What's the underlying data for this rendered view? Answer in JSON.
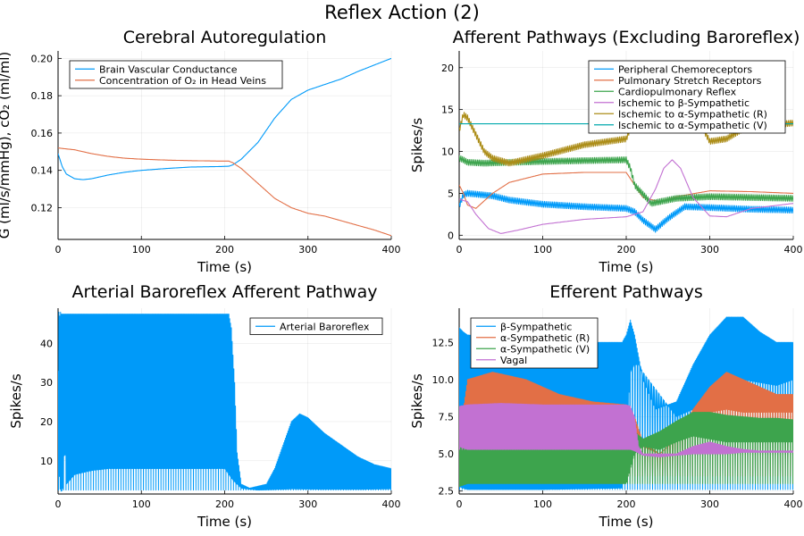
{
  "figure_title": "Reflex Action (2)",
  "chart_data": [
    {
      "type": "line",
      "title": "Cerebral Autoregulation",
      "xlabel": "Time (s)",
      "ylabel": "G (ml/s/mmHg), cO₂ (ml/ml)",
      "xlim": [
        0,
        400
      ],
      "ylim": [
        0.103,
        0.204
      ],
      "xticks": [
        "0",
        "100",
        "200",
        "300",
        "400"
      ],
      "yticks": [
        "0.12",
        "0.14",
        "0.16",
        "0.18",
        "0.20"
      ],
      "legend_position": "top-left",
      "grid": true,
      "series": [
        {
          "name": "Brain Vascular Conductance",
          "color": "#009af9",
          "x": [
            0,
            5,
            10,
            20,
            30,
            40,
            60,
            80,
            100,
            130,
            160,
            190,
            205,
            210,
            220,
            240,
            260,
            280,
            300,
            320,
            340,
            360,
            380,
            400
          ],
          "y": [
            0.149,
            0.142,
            0.138,
            0.1355,
            0.135,
            0.1355,
            0.1375,
            0.139,
            0.14,
            0.141,
            0.1418,
            0.142,
            0.1422,
            0.143,
            0.146,
            0.155,
            0.168,
            0.178,
            0.183,
            0.186,
            0.189,
            0.193,
            0.1965,
            0.2
          ]
        },
        {
          "name": "Concentration of O₂ in Head Veins",
          "color": "#e26f46",
          "x": [
            0,
            20,
            40,
            60,
            80,
            100,
            130,
            160,
            190,
            205,
            210,
            220,
            240,
            260,
            280,
            300,
            320,
            340,
            360,
            380,
            400
          ],
          "y": [
            0.152,
            0.151,
            0.149,
            0.1475,
            0.1465,
            0.146,
            0.1455,
            0.1452,
            0.145,
            0.145,
            0.144,
            0.141,
            0.133,
            0.125,
            0.12,
            0.117,
            0.1155,
            0.113,
            0.1105,
            0.108,
            0.105
          ]
        }
      ]
    },
    {
      "type": "line",
      "title": "Afferent Pathways (Excluding Baroreflex)",
      "xlabel": "Time (s)",
      "ylabel": "Spikes/s",
      "xlim": [
        0,
        400
      ],
      "ylim": [
        -0.5,
        22
      ],
      "xticks": [
        "0",
        "100",
        "200",
        "300",
        "400"
      ],
      "yticks": [
        "0",
        "5",
        "10",
        "15",
        "20"
      ],
      "legend_position": "top-right",
      "grid": true,
      "series": [
        {
          "name": "Peripheral Chemoreceptors",
          "color": "#009af9",
          "x": [
            0,
            5,
            10,
            20,
            40,
            60,
            100,
            150,
            200,
            210,
            220,
            235,
            250,
            270,
            300,
            350,
            400
          ],
          "y": [
            3.5,
            4.8,
            5.0,
            4.9,
            4.7,
            4.2,
            3.7,
            3.4,
            3.2,
            2.8,
            1.8,
            0.7,
            2.0,
            3.4,
            3.3,
            3.1,
            3.0
          ],
          "wiggle": 0.35
        },
        {
          "name": "Pulmonary Stretch Receptors",
          "color": "#e26f46",
          "x": [
            0,
            5,
            10,
            20,
            40,
            60,
            100,
            150,
            200,
            210,
            220,
            240,
            260,
            300,
            350,
            400
          ],
          "y": [
            6.0,
            5.0,
            3.6,
            3.2,
            5.0,
            6.3,
            7.3,
            7.5,
            7.5,
            6.0,
            4.5,
            4.0,
            4.6,
            5.3,
            5.2,
            5.0
          ]
        },
        {
          "name": "Cardiopulmonary Reflex",
          "color": "#3da44d",
          "x": [
            0,
            5,
            10,
            30,
            60,
            100,
            150,
            200,
            205,
            210,
            230,
            260,
            300,
            350,
            400
          ],
          "y": [
            9.2,
            9.0,
            8.7,
            8.6,
            8.7,
            8.8,
            8.9,
            9.0,
            8.0,
            6.0,
            3.8,
            4.4,
            4.6,
            4.5,
            4.4
          ],
          "wiggle": 0.35
        },
        {
          "name": "Ischemic to β-Sympathetic",
          "color": "#c271d2",
          "x": [
            0,
            10,
            20,
            35,
            50,
            70,
            100,
            150,
            200,
            220,
            235,
            245,
            255,
            265,
            280,
            300,
            320,
            350,
            400
          ],
          "y": [
            4.3,
            4.0,
            2.5,
            0.8,
            0.2,
            0.6,
            1.3,
            1.9,
            2.2,
            2.8,
            5.5,
            8.0,
            9.0,
            8.0,
            4.5,
            2.3,
            2.2,
            3.2,
            3.8
          ]
        },
        {
          "name": "Ischemic to α-Sympathetic (R)",
          "color": "#ac8d18",
          "x": [
            0,
            5,
            10,
            20,
            30,
            40,
            60,
            100,
            150,
            200,
            205,
            210,
            220,
            240,
            260,
            280,
            300,
            320,
            340,
            360,
            380,
            400
          ],
          "y": [
            12.5,
            14.4,
            14.0,
            12.0,
            10.0,
            9.2,
            8.6,
            9.5,
            10.8,
            11.5,
            12.8,
            14.5,
            17.0,
            20.2,
            19.5,
            15.0,
            11.2,
            11.5,
            12.7,
            13.3,
            13.2,
            13.4
          ],
          "wiggle": 0.35
        },
        {
          "name": "Ischemic to α-Sympathetic (V)",
          "color": "#00a9ad",
          "x": [
            0,
            5,
            400
          ],
          "y": [
            13.3,
            13.3,
            13.3
          ]
        }
      ]
    },
    {
      "type": "line",
      "title": "Arterial Baroreflex Afferent Pathway",
      "xlabel": "Time (s)",
      "ylabel": "Spikes/s",
      "xlim": [
        0,
        400
      ],
      "ylim": [
        1.5,
        49
      ],
      "xticks": [
        "0",
        "100",
        "200",
        "300",
        "400"
      ],
      "yticks": [
        "10",
        "20",
        "30",
        "40"
      ],
      "legend_position": "top-right",
      "grid": true,
      "series": [
        {
          "name": "Arterial Baroreflex",
          "color": "#009af9",
          "envelope": true,
          "upper_x": [
            0,
            1,
            2,
            3,
            4,
            5,
            200,
            205,
            208,
            212,
            215,
            220,
            230,
            250,
            260,
            270,
            280,
            290,
            300,
            320,
            340,
            360,
            380,
            400
          ],
          "upper_y": [
            33,
            48,
            47,
            48,
            47.5,
            47.5,
            47.5,
            47.5,
            44,
            30,
            12,
            4,
            3,
            4,
            8,
            14,
            20,
            22,
            21,
            17,
            14,
            11,
            9,
            8
          ],
          "lower_x": [
            0,
            2,
            4,
            6,
            8,
            10,
            20,
            40,
            60,
            100,
            150,
            200,
            210,
            220,
            240,
            280,
            320,
            360,
            400
          ],
          "lower_y": [
            15,
            3,
            2,
            3.2,
            14,
            4,
            6.5,
            7.5,
            8,
            8,
            8,
            8,
            5,
            3,
            2.5,
            2.8,
            2.7,
            2.7,
            2.8
          ],
          "floor": 2.5
        }
      ]
    },
    {
      "type": "line",
      "title": "Efferent Pathways",
      "xlabel": "Time (s)",
      "ylabel": "Spikes/s",
      "xlim": [
        0,
        400
      ],
      "ylim": [
        2.3,
        14.8
      ],
      "xticks": [
        "0",
        "100",
        "200",
        "300",
        "400"
      ],
      "yticks": [
        "2.5",
        "5.0",
        "7.5",
        "10.0",
        "12.5"
      ],
      "legend_position": "top-left",
      "grid": true,
      "series": [
        {
          "name": "β-Sympathetic",
          "color": "#009af9",
          "envelope": true,
          "upper_x": [
            0,
            5,
            10,
            50,
            100,
            150,
            195,
            200,
            205,
            210,
            215,
            220,
            235,
            260,
            280,
            300,
            320,
            340,
            360,
            380,
            400
          ],
          "upper_y": [
            13.5,
            13.2,
            13.0,
            12.8,
            12.5,
            12.5,
            12.5,
            13.0,
            14.0,
            13.0,
            11.5,
            10.0,
            8.0,
            8.5,
            11.0,
            13.0,
            14.2,
            14.2,
            13.2,
            12.5,
            12.5
          ],
          "lower_x": [
            0,
            10,
            100,
            195,
            200,
            205,
            210,
            215,
            220,
            240,
            260,
            280,
            300,
            320,
            340,
            360,
            380,
            400
          ],
          "lower_y": [
            2.8,
            2.6,
            2.6,
            2.7,
            6.0,
            10.5,
            11.0,
            11.0,
            10.5,
            9.0,
            7.5,
            8.0,
            9.0,
            9.5,
            10.0,
            9.8,
            9.6,
            10.0
          ],
          "floor": 2.6
        },
        {
          "name": "α-Sympathetic (R)",
          "color": "#e26f46",
          "envelope": true,
          "upper_x": [
            0,
            10,
            40,
            80,
            120,
            160,
            200,
            210,
            220,
            240,
            260,
            280,
            300,
            320,
            340,
            360,
            380,
            400
          ],
          "upper_y": [
            6.0,
            10.0,
            10.5,
            10.0,
            9.0,
            8.5,
            8.3,
            7.5,
            5.8,
            5.0,
            6.0,
            8.0,
            9.5,
            10.5,
            10.0,
            9.5,
            9.0,
            9.0
          ],
          "lower_x": [
            0,
            10,
            40,
            80,
            120,
            160,
            200,
            210,
            220,
            240,
            260,
            280,
            300,
            320,
            340,
            360,
            380,
            400
          ],
          "lower_y": [
            3.5,
            3.5,
            3.8,
            4.0,
            4.2,
            4.3,
            4.5,
            5.5,
            5.5,
            5.0,
            6.0,
            7.0,
            7.8,
            8.0,
            7.8,
            7.8,
            7.8,
            7.8
          ],
          "floor": 3.5
        },
        {
          "name": "α-Sympathetic (V)",
          "color": "#3da44d",
          "envelope": true,
          "upper_x": [
            0,
            10,
            50,
            100,
            150,
            200,
            210,
            220,
            240,
            260,
            280,
            300,
            320,
            340,
            360,
            380,
            400
          ],
          "upper_y": [
            5.6,
            5.8,
            5.9,
            6.0,
            6.0,
            6.2,
            6.5,
            6.0,
            6.5,
            7.2,
            7.8,
            7.8,
            7.6,
            7.5,
            7.4,
            7.4,
            7.3
          ],
          "lower_x": [
            0,
            10,
            50,
            100,
            150,
            200,
            210,
            220,
            240,
            260,
            280,
            300,
            320,
            340,
            360,
            380,
            400
          ],
          "lower_y": [
            2.8,
            3.0,
            3.0,
            3.0,
            3.0,
            3.0,
            5.0,
            5.5,
            5.3,
            5.8,
            6.2,
            6.0,
            5.8,
            5.8,
            5.8,
            5.8,
            5.8
          ],
          "floor": 3.0
        },
        {
          "name": "Vagal",
          "color": "#c271d2",
          "envelope": true,
          "upper_x": [
            0,
            10,
            50,
            100,
            150,
            200,
            205,
            210,
            215,
            220,
            240,
            260,
            280,
            300,
            320,
            340,
            360,
            380,
            400
          ],
          "upper_y": [
            8.2,
            8.3,
            8.4,
            8.3,
            8.3,
            8.3,
            8.2,
            7.5,
            5.5,
            5.0,
            5.0,
            5.0,
            5.5,
            5.8,
            5.5,
            5.3,
            5.2,
            5.2,
            5.2
          ],
          "lower_x": [
            0,
            10,
            50,
            100,
            150,
            200,
            205,
            210,
            220,
            240,
            260,
            280,
            300,
            320,
            340,
            360,
            380,
            400
          ],
          "lower_y": [
            5.5,
            5.3,
            5.3,
            5.3,
            5.3,
            5.3,
            5.3,
            5.2,
            4.9,
            4.8,
            4.9,
            5.0,
            5.0,
            5.0,
            5.1,
            5.1,
            5.1,
            5.1
          ],
          "floor": 5.3
        }
      ]
    }
  ]
}
